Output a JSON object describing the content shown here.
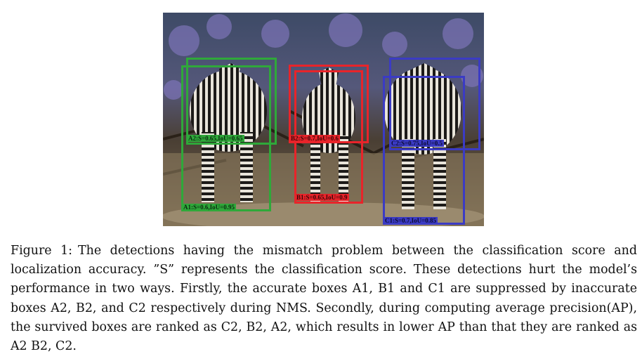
{
  "figure": {
    "labels": {
      "A1": "A1:S=0.6,IoU=0.95",
      "A2": "A2:S=0.65,IoU=0.65",
      "B1": "B1:S=0.65,IoU=0.9",
      "B2": "B2:S=0.7,IoU=0.6",
      "C1": "C1:S=0.7,IoU=0.85",
      "C2": "C2:S=0.75,IoU=0.5"
    },
    "colors": {
      "A": "#2fa83a",
      "B": "#e8242a",
      "C": "#3b3bc4"
    }
  },
  "caption": {
    "label": "Figure 1:",
    "text": "The detections having the mismatch problem between the classification score and localization accuracy. ”S” represents the classification score. These detections hurt the model’s performance in two ways. Firstly, the accurate boxes A1, B1 and C1 are suppressed by inaccurate boxes A2, B2, and C2 respectively during NMS. Secondly, during computing average precision(AP), the survived boxes are ranked as C2, B2, A2, which results in lower AP than that they are ranked as A2 B2, C2."
  }
}
